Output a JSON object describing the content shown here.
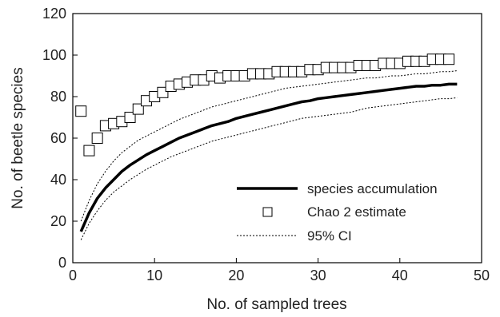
{
  "chart_data": {
    "type": "line",
    "title": "",
    "xlabel": "No. of sampled trees",
    "ylabel": "No. of beetle species",
    "xlim": [
      0,
      50
    ],
    "ylim": [
      0,
      120
    ],
    "xticks": [
      0,
      10,
      20,
      30,
      40,
      50
    ],
    "yticks": [
      0,
      20,
      40,
      60,
      80,
      100,
      120
    ],
    "grid": false,
    "legend_position": "lower-right",
    "series": [
      {
        "name": "species accumulation",
        "style": "thick-solid-line",
        "color": "#000000",
        "x": [
          1,
          2,
          3,
          4,
          5,
          6,
          7,
          8,
          9,
          10,
          11,
          12,
          13,
          14,
          15,
          16,
          17,
          18,
          19,
          20,
          21,
          22,
          23,
          24,
          25,
          26,
          27,
          28,
          29,
          30,
          31,
          32,
          33,
          34,
          35,
          36,
          37,
          38,
          39,
          40,
          41,
          42,
          43,
          44,
          45,
          46,
          47
        ],
        "y": [
          15,
          24,
          31,
          36,
          40,
          44,
          47,
          49.5,
          52,
          54,
          56,
          58,
          60,
          61.5,
          63,
          64.5,
          66,
          67,
          68,
          69.5,
          70.5,
          71.5,
          72.5,
          73.5,
          74.5,
          75.5,
          76.5,
          77.5,
          78,
          79,
          79.5,
          80,
          80.5,
          81,
          81.5,
          82,
          82.5,
          83,
          83.5,
          84,
          84.5,
          85,
          85,
          85.5,
          85.5,
          86,
          86
        ]
      },
      {
        "name": "Chao 2 estimate",
        "style": "open-square-markers",
        "color": "#000000",
        "x": [
          1,
          2,
          3,
          4,
          5,
          6,
          7,
          8,
          9,
          10,
          11,
          12,
          13,
          14,
          15,
          16,
          17,
          18,
          19,
          20,
          21,
          22,
          23,
          24,
          25,
          26,
          27,
          28,
          29,
          30,
          31,
          32,
          33,
          34,
          35,
          36,
          37,
          38,
          39,
          40,
          41,
          42,
          43,
          44,
          45,
          46
        ],
        "y": [
          73,
          54,
          60,
          66,
          67,
          68,
          70,
          74,
          78,
          80,
          82,
          85,
          86,
          87,
          88,
          88,
          90,
          89,
          90,
          90,
          90,
          91,
          91,
          91,
          92,
          92,
          92,
          92,
          93,
          93,
          94,
          94,
          94,
          94,
          95,
          95,
          95,
          96,
          96,
          96,
          97,
          97,
          97,
          98,
          98,
          98
        ]
      },
      {
        "name": "95% CI",
        "style": "dotted-line",
        "color": "#000000",
        "x": [
          1,
          2,
          3,
          4,
          5,
          6,
          7,
          8,
          9,
          10,
          11,
          12,
          13,
          14,
          15,
          16,
          17,
          18,
          19,
          20,
          21,
          22,
          23,
          24,
          25,
          26,
          27,
          28,
          29,
          30,
          31,
          32,
          33,
          34,
          35,
          36,
          37,
          38,
          39,
          40,
          41,
          42,
          43,
          44,
          45,
          46,
          47
        ],
        "y_upper": [
          20,
          30,
          38,
          44,
          49,
          53,
          56,
          59,
          61,
          63,
          65,
          67,
          69,
          70.5,
          72,
          73.5,
          75,
          76,
          77,
          78,
          79,
          80,
          81,
          82,
          83,
          84,
          84.5,
          85,
          85.5,
          86,
          86.5,
          87,
          87.5,
          88,
          88.5,
          89,
          89,
          89.5,
          90,
          90,
          90.5,
          91,
          91,
          91.5,
          92,
          92,
          92.5
        ],
        "y_lower": [
          11,
          19,
          25,
          30,
          34,
          37,
          40,
          42.5,
          45,
          47,
          49,
          51,
          52.5,
          54,
          55.5,
          57,
          58.5,
          59.5,
          60.5,
          61.5,
          62.5,
          63.5,
          64.5,
          65.5,
          66.5,
          67.5,
          68.5,
          69.5,
          70,
          70.5,
          71,
          71.5,
          72,
          72.5,
          73.5,
          74.5,
          75,
          75.5,
          76,
          76.5,
          77,
          77.5,
          78,
          78.5,
          79,
          79,
          79.5
        ]
      }
    ]
  }
}
